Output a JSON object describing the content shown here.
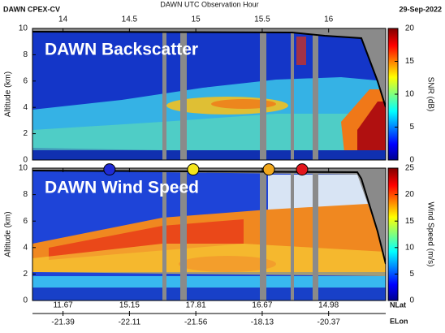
{
  "chart_data": {
    "type": "heatmap",
    "mission": "DAWN CPEX-CV",
    "title": "DAWN UTC Observation Hour",
    "date": "29-Sep-2022",
    "xlim": [
      13.77,
      16.43
    ],
    "xticks": [
      14,
      14.5,
      15,
      15.5,
      16
    ],
    "panels": [
      {
        "title": "DAWN Backscatter",
        "ylabel": "Altitude (km)",
        "ylim": [
          0,
          10
        ],
        "yticks": [
          0,
          2,
          4,
          6,
          8,
          10
        ],
        "colorbar": {
          "label": "SNR (dB)",
          "lim": [
            0,
            20
          ],
          "ticks": [
            0,
            5,
            10,
            15,
            20
          ]
        }
      },
      {
        "title": "DAWN Wind Speed",
        "ylabel": "Altitude (km)",
        "ylim": [
          0,
          10
        ],
        "yticks": [
          0,
          2,
          4,
          6,
          8,
          10
        ],
        "colorbar": {
          "label": "Wind Speed (m/s)",
          "lim": [
            0,
            25
          ],
          "ticks": [
            0,
            5,
            10,
            15,
            20,
            25
          ]
        },
        "markers": {
          "x": [
            14.35,
            14.98,
            15.55,
            15.8
          ],
          "y": [
            9.9,
            9.9,
            9.9,
            9.9
          ],
          "colors": [
            "#1f2bd6",
            "#f6e61c",
            "#f2a81c",
            "#e3161c"
          ]
        }
      }
    ],
    "nav": {
      "lat_label": "NLat",
      "lat": [
        "11.67",
        "15.15",
        "17.81",
        "16.67",
        "14.98"
      ],
      "lon_label": "ELon",
      "lon": [
        "-21.39",
        "-22.11",
        "-21.56",
        "-18.13",
        "-20.37"
      ]
    }
  }
}
